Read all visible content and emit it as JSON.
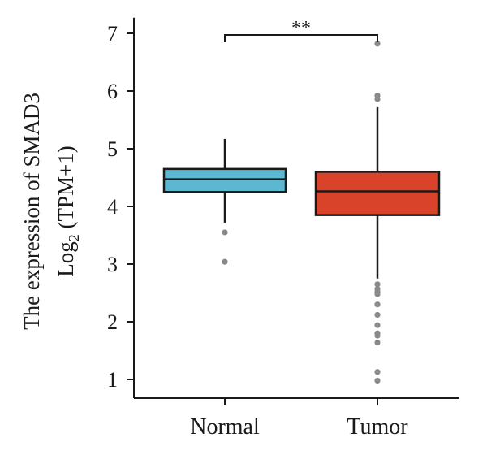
{
  "chart_data": {
    "type": "box",
    "title": "",
    "ylabel_line1": "The expression of SMAD3",
    "ylabel_line2_prefix": "Log",
    "ylabel_line2_sub": "2",
    "ylabel_line2_suffix": " (TPM+1)",
    "xlabel": "",
    "ylim": [
      0.6,
      7.3
    ],
    "yticks": [
      1,
      2,
      3,
      4,
      5,
      6,
      7
    ],
    "grid": false,
    "legend": "none",
    "categories": [
      "Normal",
      "Tumor"
    ],
    "boxes": [
      {
        "category": "Normal",
        "color": "#5bb8d0",
        "whisker_low": 3.72,
        "q1": 4.25,
        "median": 4.47,
        "q3": 4.65,
        "whisker_high": 5.17,
        "outliers": [
          3.55,
          3.04
        ]
      },
      {
        "category": "Tumor",
        "color": "#d9432a",
        "whisker_low": 2.75,
        "q1": 3.85,
        "median": 4.26,
        "q3": 4.6,
        "whisker_high": 5.72,
        "outliers": [
          6.82,
          5.92,
          5.86,
          2.65,
          2.57,
          2.52,
          2.48,
          2.3,
          2.12,
          1.94,
          1.8,
          1.76,
          1.64,
          1.13,
          0.98
        ]
      }
    ],
    "significance": {
      "from": "Normal",
      "to": "Tumor",
      "label": "**"
    }
  }
}
